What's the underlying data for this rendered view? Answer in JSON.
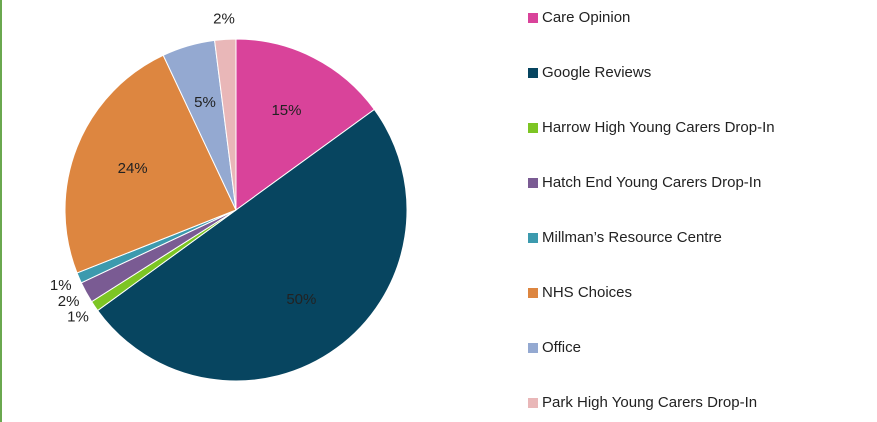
{
  "chart_data": {
    "type": "pie",
    "categories": [
      "Care Opinion",
      "Google Reviews",
      "Harrow High Young Carers Drop-In",
      "Hatch End Young Carers Drop-In",
      "Millman’s Resource Centre",
      "NHS Choices",
      "Office",
      "Park High Young Carers Drop-In"
    ],
    "values": [
      15,
      50,
      1,
      2,
      1,
      24,
      5,
      2
    ],
    "value_labels": [
      "15%",
      "50%",
      "1%",
      "2%",
      "1%",
      "24%",
      "5%",
      "2%"
    ],
    "colors": [
      "#d9439a",
      "#074560",
      "#7dc524",
      "#7a5b93",
      "#3c9aae",
      "#dd8640",
      "#94a9d1",
      "#e9b7b8"
    ],
    "legend": "right"
  }
}
